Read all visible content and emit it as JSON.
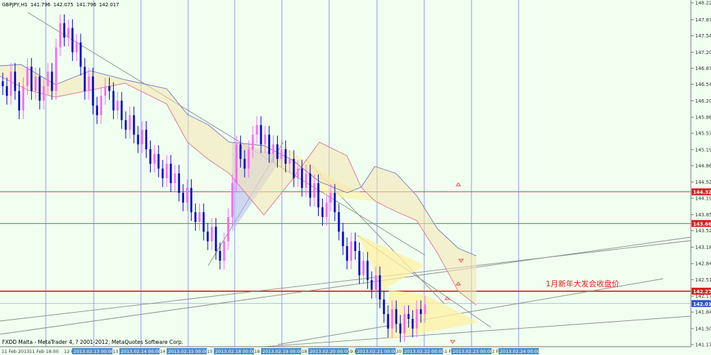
{
  "header": {
    "symbol": "GBPJPY,H1",
    "open": "141.796",
    "high": "142.075",
    "low": "141.796",
    "close": "142.017"
  },
  "copyright": "FXDD Malta - MetaTrader 4, ? 2001-2012, MetaQuotes Software Corp.",
  "annotation": "1月新年大发会收盘价",
  "colors": {
    "background": "#f0fff0",
    "bull_candle": "#ff66ff",
    "bear_candle": "#0000cc",
    "level_line": "#e04040",
    "level_label_bg": "#d42020",
    "current_label_bg": "#3355cc",
    "grid_vertical": "#8899ee",
    "cloud_up": "#f5c060",
    "cloud_down": "#6a78c0",
    "triangle": "#fff0a0",
    "triangle_blue": "#b0b8f0",
    "arrow": "#ff4040"
  },
  "chart_data": {
    "type": "candlestick",
    "title": "GBPJPY,H1",
    "ylim": [
      141.17,
      148.22
    ],
    "y_ticks": [
      148.22,
      147.87,
      147.54,
      147.2,
      146.87,
      146.54,
      146.2,
      145.86,
      145.53,
      145.19,
      144.86,
      144.52,
      144.19,
      143.85,
      143.52,
      143.18,
      142.84,
      142.51,
      142.17,
      141.84,
      141.5,
      141.17
    ],
    "x_ticks": [
      "11 Feb 2013",
      "11 Feb 18:00",
      "12 F",
      "13 Fe",
      "14 F",
      "15 F",
      "18 F",
      "18",
      "19 F",
      "20 F",
      "21 F",
      "22 F",
      "23 F",
      "24 F"
    ],
    "time_labels": [
      "2013.02.13 00:00",
      "2013.02.14 00:00",
      "2013.02.15 00:00",
      "2013.02.18 00:00",
      "2013.02.19 00:00",
      "2013.02.20 00:00",
      "2013.02.21 00:00",
      "2013.02.22 00:00",
      "2013.02.23 00:00",
      "2013.02.24 00:00"
    ],
    "levels": [
      {
        "value": 144.321,
        "label": "144.321"
      },
      {
        "value": 143.668,
        "label": "143.668"
      },
      {
        "value": 142.272,
        "label": "142.272"
      }
    ],
    "current_price": {
      "value": 142.017,
      "label": "142.017"
    },
    "series": [
      {
        "name": "GBPJPY",
        "values": [
          146.5,
          146.3,
          146.8,
          146.4,
          146.0,
          146.5,
          146.9,
          146.4,
          146.7,
          146.2,
          146.5,
          146.8,
          146.4,
          147.3,
          147.8,
          147.5,
          147.7,
          147.2,
          147.4,
          146.9,
          146.4,
          146.7,
          146.1,
          145.9,
          146.3,
          146.5,
          146.4,
          146.0,
          146.2,
          145.8,
          145.6,
          145.9,
          145.5,
          145.3,
          145.6,
          145.2,
          144.9,
          145.1,
          144.8,
          144.6,
          144.9,
          144.5,
          144.7,
          144.3,
          144.1,
          144.4,
          143.9,
          143.7,
          143.9,
          143.5,
          143.3,
          143.6,
          143.1,
          142.9,
          143.3,
          143.8,
          144.5,
          145.3,
          145.0,
          144.8,
          145.2,
          145.5,
          145.7,
          145.3,
          145.5,
          145.1,
          145.3,
          145.0,
          145.2,
          144.9,
          145.0,
          144.6,
          144.8,
          144.4,
          144.7,
          144.2,
          144.5,
          144.0,
          143.8,
          144.1,
          144.3,
          143.9,
          143.5,
          143.2,
          142.9,
          143.3,
          143.1,
          142.6,
          142.9,
          142.5,
          142.3,
          142.6,
          142.1,
          141.8,
          141.5,
          141.9,
          141.6,
          141.4,
          141.8,
          141.7,
          141.5,
          141.9,
          141.8,
          142.0
        ]
      }
    ],
    "grid": true
  }
}
